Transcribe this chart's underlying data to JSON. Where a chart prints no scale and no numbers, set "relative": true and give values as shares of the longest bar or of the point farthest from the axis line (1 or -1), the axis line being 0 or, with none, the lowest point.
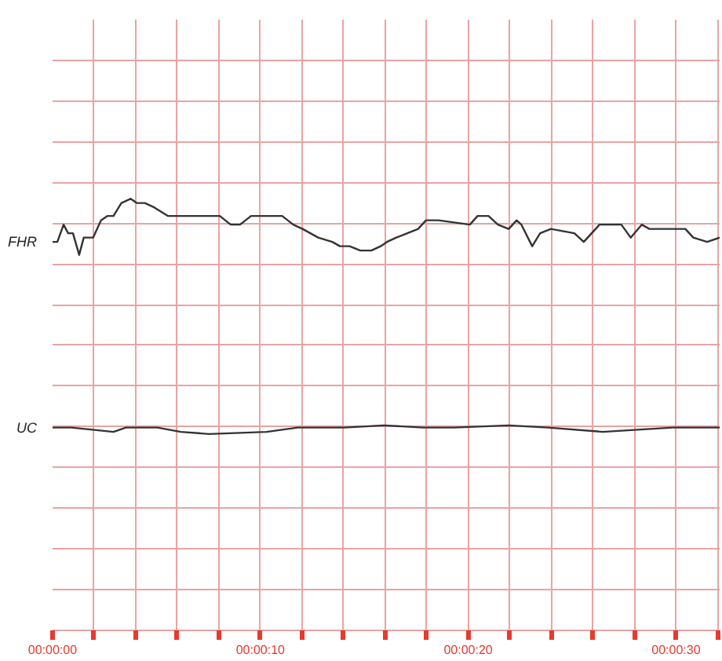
{
  "chart_data": {
    "type": "line",
    "relative": true,
    "grid": true,
    "line_style": "solid",
    "xlim": [
      0,
      32.1
    ],
    "xticks": [
      {
        "value": 0,
        "label": "00:00:00"
      },
      {
        "value": 2,
        "label": null
      },
      {
        "value": 4,
        "label": null
      },
      {
        "value": 6,
        "label": null
      },
      {
        "value": 8,
        "label": null
      },
      {
        "value": 10,
        "label": "00:00:10"
      },
      {
        "value": 12,
        "label": null
      },
      {
        "value": 14,
        "label": null
      },
      {
        "value": 16,
        "label": null
      },
      {
        "value": 18,
        "label": null
      },
      {
        "value": 20,
        "label": "00:00:20"
      },
      {
        "value": 22,
        "label": null
      },
      {
        "value": 24,
        "label": null
      },
      {
        "value": 26,
        "label": null
      },
      {
        "value": 28,
        "label": null
      },
      {
        "value": 30,
        "label": "00:00:30"
      },
      {
        "value": 32,
        "label": null
      }
    ],
    "series": [
      {
        "name": "FHR",
        "color": "#333333",
        "x": [
          0,
          0.23,
          0.53,
          0.75,
          0.98,
          1.28,
          1.5,
          1.95,
          2.33,
          2.63,
          2.93,
          3.31,
          3.76,
          4.06,
          4.44,
          4.89,
          5.56,
          6.54,
          7.74,
          8.05,
          8.57,
          9.02,
          9.55,
          11.05,
          11.58,
          12.03,
          12.78,
          13.46,
          13.83,
          14.29,
          14.81,
          15.34,
          15.79,
          16.09,
          16.54,
          17.07,
          17.59,
          17.97,
          18.57,
          20.08,
          20.45,
          20.98,
          21.43,
          21.95,
          22.33,
          22.56,
          23.08,
          23.46,
          23.98,
          25.11,
          25.56,
          26.32,
          27.37,
          27.82,
          28.35,
          28.72,
          29.85,
          30.45,
          30.83,
          31.5,
          32.1
        ],
        "values": [
          0.9,
          0.9,
          0.94,
          0.92,
          0.92,
          0.87,
          0.91,
          0.91,
          0.95,
          0.96,
          0.96,
          0.99,
          1,
          0.99,
          0.99,
          0.98,
          0.96,
          0.96,
          0.96,
          0.96,
          0.94,
          0.94,
          0.96,
          0.96,
          0.94,
          0.93,
          0.91,
          0.9,
          0.89,
          0.89,
          0.88,
          0.88,
          0.89,
          0.9,
          0.91,
          0.92,
          0.93,
          0.95,
          0.95,
          0.94,
          0.96,
          0.96,
          0.94,
          0.93,
          0.95,
          0.94,
          0.89,
          0.92,
          0.93,
          0.92,
          0.9,
          0.94,
          0.94,
          0.91,
          0.94,
          0.93,
          0.93,
          0.93,
          0.91,
          0.9,
          0.91
        ]
      },
      {
        "name": "UC",
        "color": "#333333",
        "x": [
          0,
          0.9,
          2.93,
          3.53,
          5.04,
          6.17,
          7.52,
          10.3,
          11.8,
          14.06,
          15.94,
          17.82,
          19.32,
          21.95,
          23.83,
          26.47,
          29.85,
          32.1
        ],
        "values": [
          0.47,
          0.47,
          0.46,
          0.47,
          0.47,
          0.46,
          0.455,
          0.46,
          0.47,
          0.47,
          0.475,
          0.47,
          0.47,
          0.475,
          0.47,
          0.46,
          0.47,
          0.47
        ]
      }
    ]
  }
}
